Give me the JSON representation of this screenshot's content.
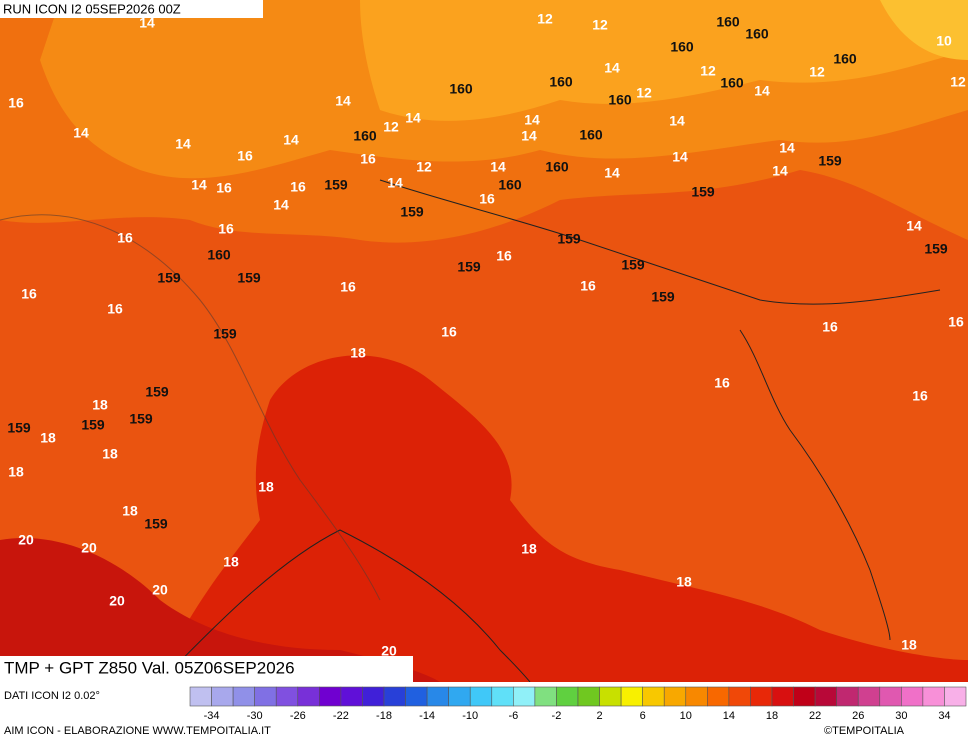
{
  "header": {
    "run": "RUN ICON I2 05SEP2026 00Z"
  },
  "product": {
    "title": "TMP + GPT Z850 Val. 05Z06SEP2026"
  },
  "footer": {
    "source": "DATI ICON I2 0.02°",
    "credit": "AIM ICON - ELABORAZIONE WWW.TEMPOITALIA.IT",
    "copyright": "©TEMPOITALIA"
  },
  "colorbar": {
    "labels": [
      -34,
      -30,
      -26,
      -22,
      -18,
      -14,
      -10,
      -6,
      -2,
      2,
      6,
      10,
      14,
      18,
      22,
      26,
      30,
      34
    ],
    "colors": [
      "#c0c0f0",
      "#a8a8ec",
      "#9090e8",
      "#8070e4",
      "#8050e0",
      "#7830d8",
      "#7000d0",
      "#6010d8",
      "#4020d8",
      "#2840d8",
      "#2060e0",
      "#2888e8",
      "#30a8f0",
      "#40c8f8",
      "#60e0f8",
      "#90f0f8",
      "#80e080",
      "#60d040",
      "#70c820",
      "#c8e000",
      "#f8f000",
      "#f8c800",
      "#f8a800",
      "#f88800",
      "#f86800",
      "#f04808",
      "#e82808",
      "#d81010",
      "#c00018",
      "#b80838",
      "#c02870",
      "#d04090",
      "#e058b0",
      "#f070c8",
      "#f890d8",
      "#f8b0e8"
    ]
  },
  "contour_labels": [
    14,
    12,
    12,
    160,
    160,
    160,
    10,
    160,
    12,
    14,
    12,
    12,
    16,
    160,
    160,
    160,
    14,
    160,
    12,
    14,
    14,
    14,
    14,
    12,
    14,
    160,
    160,
    14,
    14,
    14,
    16,
    16,
    12,
    14,
    160,
    14,
    14,
    14,
    14,
    159,
    14,
    16,
    16,
    159,
    14,
    160,
    159,
    14,
    159,
    16,
    16,
    16,
    159,
    14,
    159,
    160,
    159,
    159,
    159,
    16,
    159,
    16,
    16,
    16,
    159,
    16,
    159,
    16,
    16,
    16,
    18,
    16,
    159,
    18,
    16,
    159,
    18,
    159,
    159,
    18,
    18,
    18,
    18,
    159,
    20,
    20,
    18,
    18,
    20,
    18,
    20,
    18,
    20
  ]
}
